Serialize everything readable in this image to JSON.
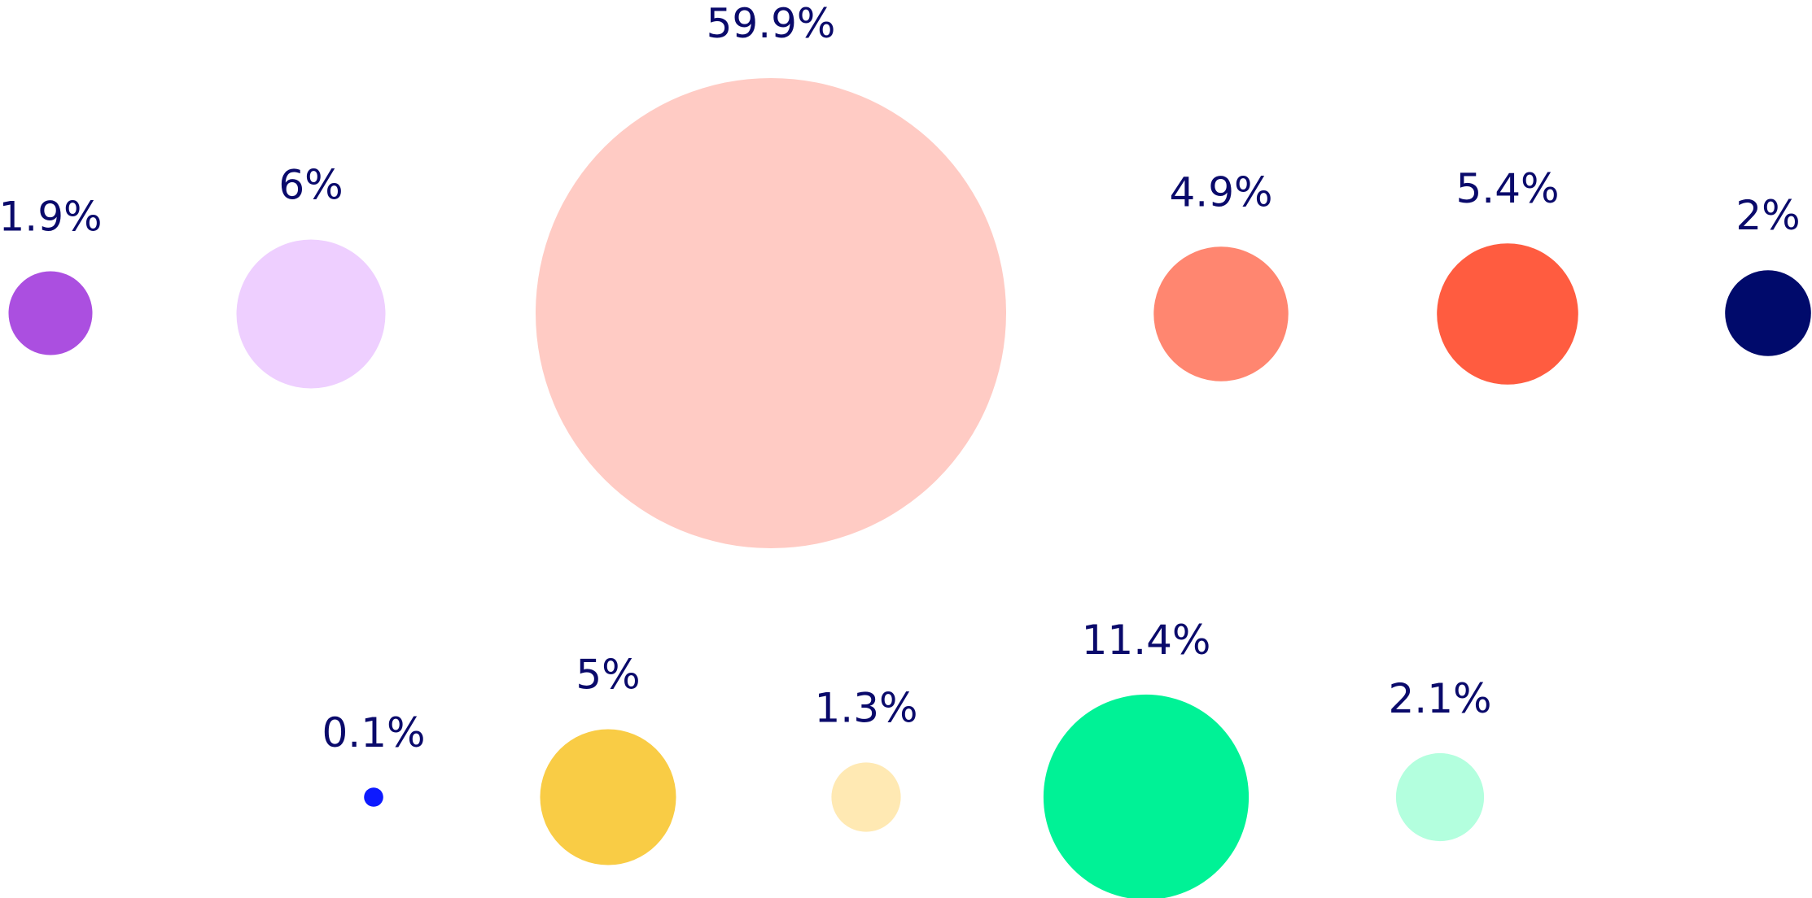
{
  "chart_data": {
    "type": "bubble",
    "label_color": "#0a0a6b",
    "bubbles": [
      {
        "value": 1.9,
        "label": "1.9%",
        "color": "#ab4fe0"
      },
      {
        "value": 6,
        "label": "6%",
        "color": "#eecfff"
      },
      {
        "value": 59.9,
        "label": "59.9%",
        "color": "#ffcbc4"
      },
      {
        "value": 4.9,
        "label": "4.9%",
        "color": "#ff8670"
      },
      {
        "value": 5.4,
        "label": "5.4%",
        "color": "#ff5c40"
      },
      {
        "value": 2,
        "label": "2%",
        "color": "#000a6b"
      },
      {
        "value": 0.1,
        "label": "0.1%",
        "color": "#0d1aff"
      },
      {
        "value": 5,
        "label": "5%",
        "color": "#f9cc45"
      },
      {
        "value": 1.3,
        "label": "1.3%",
        "color": "#ffe9b3"
      },
      {
        "value": 11.4,
        "label": "11.4%",
        "color": "#00f296"
      },
      {
        "value": 2.1,
        "label": "2.1%",
        "color": "#b3ffde"
      }
    ]
  }
}
